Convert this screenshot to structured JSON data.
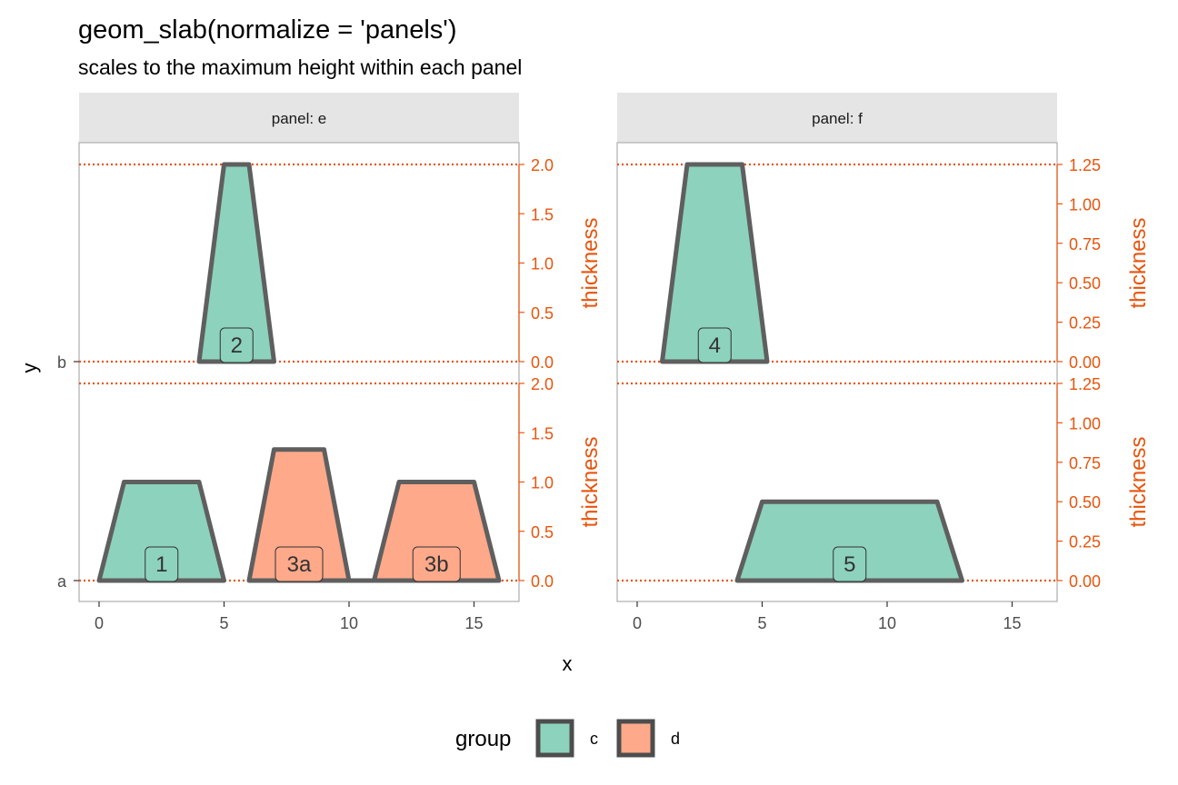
{
  "chart_data": {
    "type": "area",
    "title": "geom_slab(normalize = 'panels')",
    "subtitle": "scales to the maximum height within each panel",
    "xlabel": "x",
    "ylabel": "y",
    "secondary_axis_label": "thickness",
    "x_ticks": [
      0,
      5,
      10,
      15
    ],
    "xlim": [
      -0.8,
      16.8
    ],
    "y_levels": [
      "a",
      "b"
    ],
    "colors": {
      "c": "#8dd2bd",
      "d": "#fea98a",
      "outline": "#5f5f5f",
      "guide": "#f0530c",
      "strip": "#e5e5e5"
    },
    "legend": {
      "title": "group",
      "position": "bottom",
      "items": [
        {
          "key": "c",
          "label": "c"
        },
        {
          "key": "d",
          "label": "d"
        }
      ]
    },
    "panels": [
      {
        "strip": "panel: e",
        "thickness_max": 2.0,
        "thickness_ticks": [
          "2.0",
          "1.5",
          "1.0",
          "0.5",
          "0.0"
        ],
        "rows": {
          "b": {
            "slabs": [
              {
                "group": "c",
                "label": "2",
                "points": [
                  [
                    4,
                    0
                  ],
                  [
                    5,
                    2
                  ],
                  [
                    6,
                    2
                  ],
                  [
                    7,
                    0
                  ]
                ]
              }
            ]
          },
          "a": {
            "slabs": [
              {
                "group": "c",
                "label": "1",
                "points": [
                  [
                    0,
                    0
                  ],
                  [
                    1,
                    1
                  ],
                  [
                    4,
                    1
                  ],
                  [
                    5,
                    0
                  ]
                ]
              },
              {
                "group": "d",
                "label": "3a",
                "points": [
                  [
                    6,
                    0
                  ],
                  [
                    7,
                    1.33
                  ],
                  [
                    9,
                    1.33
                  ],
                  [
                    10,
                    0
                  ]
                ]
              },
              {
                "group": "d",
                "label": "3b",
                "points": [
                  [
                    11,
                    0
                  ],
                  [
                    12,
                    1
                  ],
                  [
                    15,
                    1
                  ],
                  [
                    16,
                    0
                  ]
                ]
              }
            ],
            "baseline_segments": [
              [
                10,
                11
              ]
            ]
          }
        }
      },
      {
        "strip": "panel: f",
        "thickness_max": 1.25,
        "thickness_ticks": [
          "1.25",
          "1.00",
          "0.75",
          "0.50",
          "0.25",
          "0.00"
        ],
        "rows": {
          "b": {
            "slabs": [
              {
                "group": "c",
                "label": "4",
                "points": [
                  [
                    1,
                    0
                  ],
                  [
                    2,
                    1.25
                  ],
                  [
                    4.2,
                    1.25
                  ],
                  [
                    5.2,
                    0
                  ]
                ]
              }
            ]
          },
          "a": {
            "slabs": [
              {
                "group": "c",
                "label": "5",
                "points": [
                  [
                    4,
                    0
                  ],
                  [
                    5,
                    0.5
                  ],
                  [
                    12,
                    0.5
                  ],
                  [
                    13,
                    0
                  ]
                ]
              }
            ]
          }
        }
      }
    ]
  }
}
